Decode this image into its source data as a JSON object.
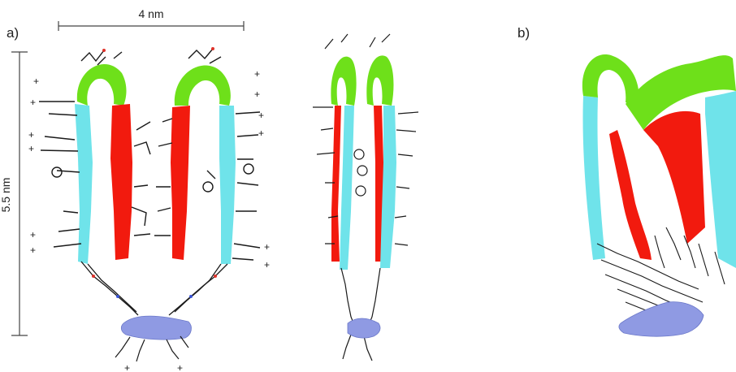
{
  "panels": {
    "a": {
      "label": "a)"
    },
    "b": {
      "label": "b)"
    }
  },
  "scale_bars": {
    "horizontal": {
      "text": "4 nm"
    },
    "vertical": {
      "text": "5.5 nm"
    }
  },
  "charge_symbol": "+",
  "colors": {
    "green": "#6ee01a",
    "red": "#f21a0e",
    "cyan": "#6fe3ea",
    "blue": "#8f9ae3",
    "stick": "#1a1a1a",
    "nitrogen": "#3a55d8",
    "oxygen": "#e0322a"
  }
}
